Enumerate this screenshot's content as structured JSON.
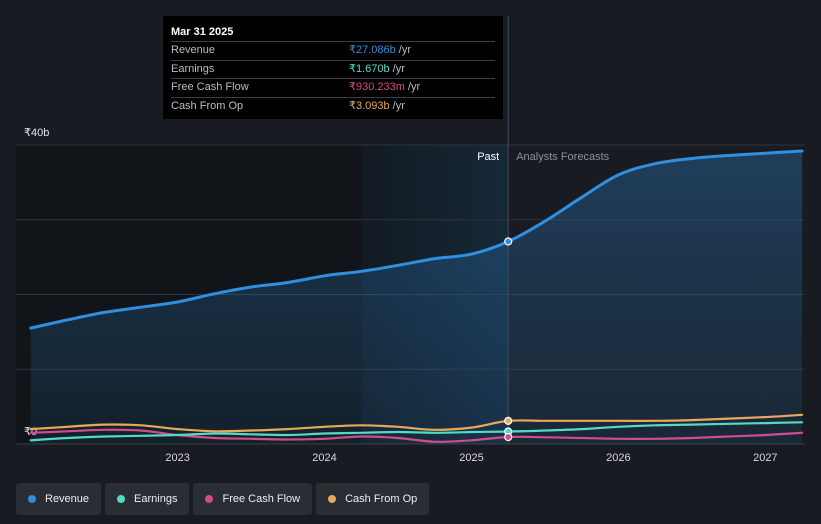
{
  "chart_data": {
    "type": "line",
    "y_unit_prefix": "₹",
    "y_ticks": [
      {
        "value": 40,
        "label": "₹40b"
      },
      {
        "value": 0,
        "label": "₹0"
      }
    ],
    "ylim": [
      0,
      40
    ],
    "x_ticks": [
      {
        "value": 2023.0,
        "label": "2023"
      },
      {
        "value": 2024.0,
        "label": "2024"
      },
      {
        "value": 2025.0,
        "label": "2025"
      },
      {
        "value": 2026.0,
        "label": "2026"
      },
      {
        "value": 2027.0,
        "label": "2027"
      }
    ],
    "xlim": [
      2021.9,
      2027.27
    ],
    "past_label": "Past",
    "forecast_label": "Analysts Forecasts",
    "divider_x": 2025.25,
    "highlight_start_x": 2024.25,
    "series": [
      {
        "name": "Revenue",
        "color": "#2f8fe0",
        "fill": true,
        "points": [
          [
            2022.0,
            15.5
          ],
          [
            2022.25,
            16.6
          ],
          [
            2022.5,
            17.6
          ],
          [
            2022.75,
            18.3
          ],
          [
            2023.0,
            19.0
          ],
          [
            2023.25,
            20.1
          ],
          [
            2023.5,
            21.0
          ],
          [
            2023.75,
            21.6
          ],
          [
            2024.0,
            22.5
          ],
          [
            2024.25,
            23.1
          ],
          [
            2024.5,
            23.9
          ],
          [
            2024.75,
            24.8
          ],
          [
            2025.0,
            25.4
          ],
          [
            2025.25,
            27.086
          ],
          [
            2025.5,
            29.8
          ],
          [
            2025.75,
            33.0
          ],
          [
            2026.0,
            36.0
          ],
          [
            2026.25,
            37.5
          ],
          [
            2026.5,
            38.2
          ],
          [
            2026.75,
            38.6
          ],
          [
            2027.0,
            38.9
          ],
          [
            2027.25,
            39.2
          ]
        ]
      },
      {
        "name": "Earnings",
        "color": "#56d9c4",
        "points": [
          [
            2022.0,
            0.5
          ],
          [
            2022.25,
            0.8
          ],
          [
            2022.5,
            1.0
          ],
          [
            2022.75,
            1.1
          ],
          [
            2023.0,
            1.2
          ],
          [
            2023.25,
            1.4
          ],
          [
            2023.5,
            1.3
          ],
          [
            2023.75,
            1.2
          ],
          [
            2024.0,
            1.4
          ],
          [
            2024.25,
            1.5
          ],
          [
            2024.5,
            1.6
          ],
          [
            2024.75,
            1.5
          ],
          [
            2025.0,
            1.6
          ],
          [
            2025.25,
            1.67
          ],
          [
            2025.5,
            1.8
          ],
          [
            2025.75,
            2.0
          ],
          [
            2026.0,
            2.3
          ],
          [
            2026.25,
            2.5
          ],
          [
            2026.5,
            2.6
          ],
          [
            2026.75,
            2.7
          ],
          [
            2027.0,
            2.8
          ],
          [
            2027.25,
            2.9
          ]
        ]
      },
      {
        "name": "Free Cash Flow",
        "color": "#d14d8a",
        "points": [
          [
            2022.0,
            1.5
          ],
          [
            2022.25,
            1.7
          ],
          [
            2022.5,
            1.9
          ],
          [
            2022.75,
            1.8
          ],
          [
            2023.0,
            1.2
          ],
          [
            2023.25,
            0.8
          ],
          [
            2023.5,
            0.7
          ],
          [
            2023.75,
            0.6
          ],
          [
            2024.0,
            0.7
          ],
          [
            2024.25,
            1.0
          ],
          [
            2024.5,
            0.8
          ],
          [
            2024.75,
            0.3
          ],
          [
            2025.0,
            0.5
          ],
          [
            2025.25,
            0.93
          ],
          [
            2025.5,
            0.9
          ],
          [
            2025.75,
            0.8
          ],
          [
            2026.0,
            0.7
          ],
          [
            2026.25,
            0.7
          ],
          [
            2026.5,
            0.8
          ],
          [
            2026.75,
            1.0
          ],
          [
            2027.0,
            1.2
          ],
          [
            2027.25,
            1.5
          ]
        ]
      },
      {
        "name": "Cash From Op",
        "color": "#e8a95a",
        "points": [
          [
            2022.0,
            2.0
          ],
          [
            2022.25,
            2.3
          ],
          [
            2022.5,
            2.6
          ],
          [
            2022.75,
            2.5
          ],
          [
            2023.0,
            2.0
          ],
          [
            2023.25,
            1.7
          ],
          [
            2023.5,
            1.8
          ],
          [
            2023.75,
            2.0
          ],
          [
            2024.0,
            2.3
          ],
          [
            2024.25,
            2.5
          ],
          [
            2024.5,
            2.3
          ],
          [
            2024.75,
            1.9
          ],
          [
            2025.0,
            2.2
          ],
          [
            2025.25,
            3.093
          ],
          [
            2025.5,
            3.1
          ],
          [
            2025.75,
            3.1
          ],
          [
            2026.0,
            3.1
          ],
          [
            2026.25,
            3.1
          ],
          [
            2026.5,
            3.2
          ],
          [
            2026.75,
            3.4
          ],
          [
            2027.0,
            3.6
          ],
          [
            2027.25,
            3.9
          ]
        ]
      }
    ],
    "tooltip": {
      "date": "Mar 31 2025",
      "x": 2025.25,
      "rows": [
        {
          "name": "Revenue",
          "value": "₹27.086b",
          "unit": "/yr",
          "color": "#2f8fe0"
        },
        {
          "name": "Earnings",
          "value": "₹1.670b",
          "unit": "/yr",
          "color": "#56d9c4"
        },
        {
          "name": "Free Cash Flow",
          "value": "₹930.233m",
          "unit": "/yr",
          "color": "#d14d8a"
        },
        {
          "name": "Cash From Op",
          "value": "₹3.093b",
          "unit": "/yr",
          "color": "#e8a95a"
        }
      ]
    },
    "legend": [
      {
        "name": "Revenue",
        "color": "#2f8fe0"
      },
      {
        "name": "Earnings",
        "color": "#56d9c4"
      },
      {
        "name": "Free Cash Flow",
        "color": "#d14d8a"
      },
      {
        "name": "Cash From Op",
        "color": "#e8a95a"
      }
    ]
  }
}
